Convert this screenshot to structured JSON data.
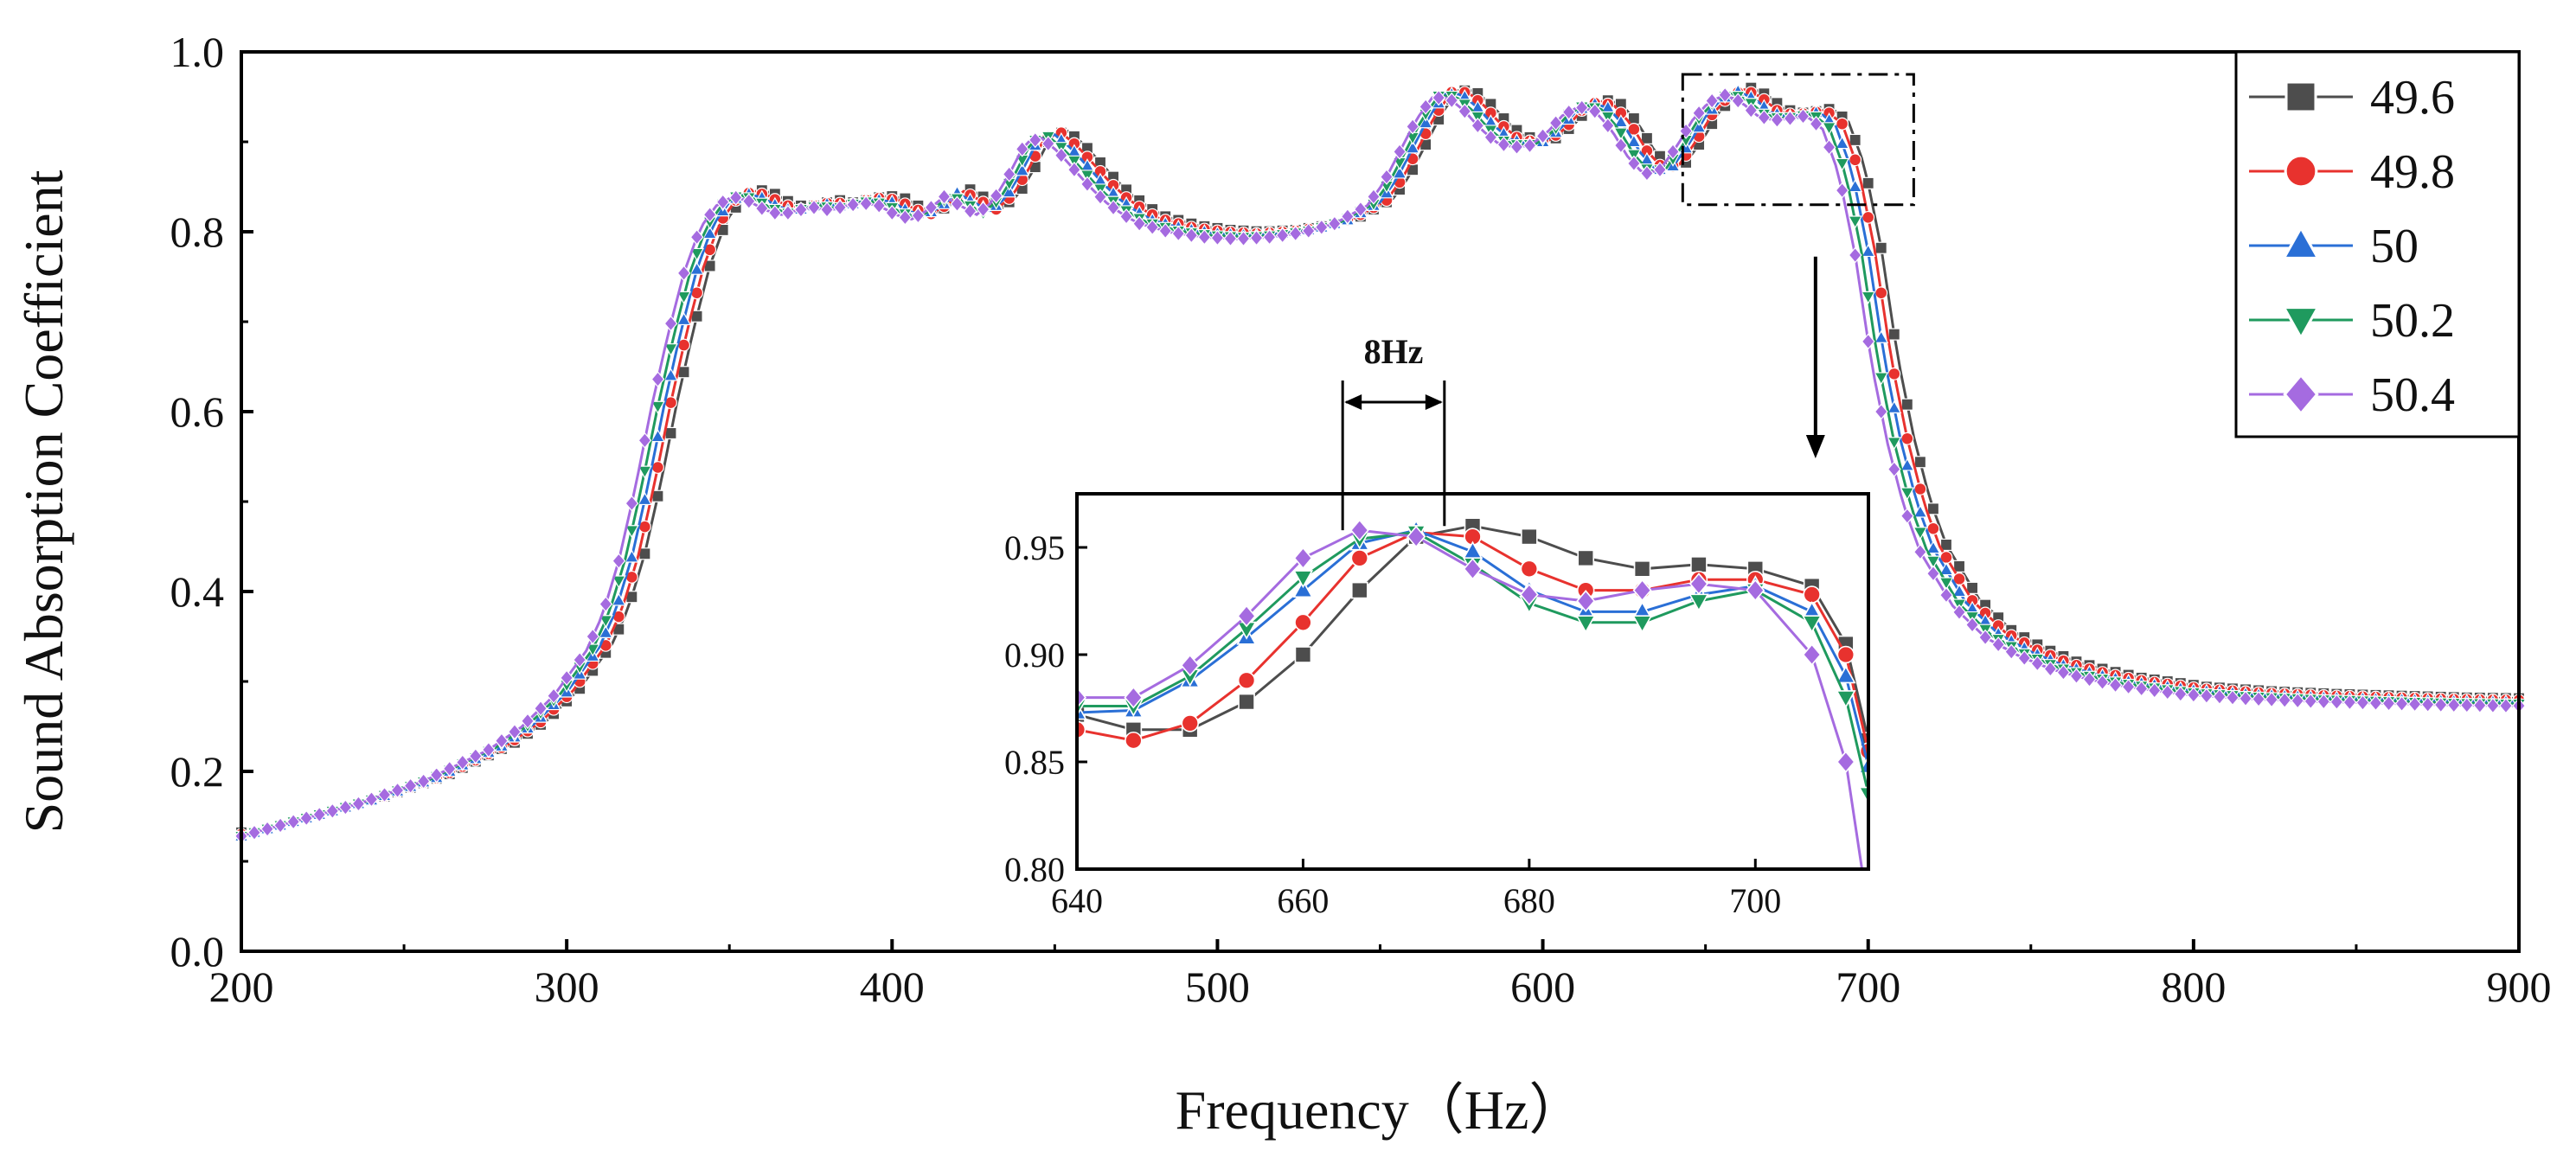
{
  "colors": {
    "s49_6": "#4d4d4d",
    "s49_8": "#e8322e",
    "s50": "#2a6fd6",
    "s50_2": "#1f9a5e",
    "s50_4": "#a56be0",
    "axis": "#000000",
    "marker_outline": "#ffffff"
  },
  "chart_data": [
    {
      "id": "main",
      "type": "line",
      "title": "",
      "xlabel": "Frequency（Hz）",
      "ylabel": "Sound Absorption Coefficient",
      "xlim": [
        200,
        900
      ],
      "ylim": [
        0.0,
        1.0
      ],
      "xticks": [
        "200",
        "300",
        "400",
        "500",
        "600",
        "700",
        "800",
        "900"
      ],
      "yticks": [
        "0.0",
        "0.2",
        "0.4",
        "0.6",
        "0.8",
        "1.0"
      ],
      "grid": false,
      "legend": "top-right",
      "base_curve": {
        "x": [
          200,
          220,
          240,
          260,
          280,
          290,
          300,
          310,
          315,
          320,
          325,
          330,
          335,
          340,
          345,
          350,
          355,
          360,
          365,
          370,
          375,
          380,
          385,
          390,
          395,
          400,
          405,
          410,
          415,
          420,
          425,
          430,
          435,
          440,
          445,
          450,
          455,
          460,
          465,
          470,
          475,
          480,
          490,
          500,
          510,
          520,
          530,
          540,
          550,
          555,
          560,
          565,
          570,
          575,
          580,
          585,
          590,
          595,
          600,
          605,
          610,
          615,
          620,
          625,
          630,
          635,
          640,
          645,
          650,
          655,
          660,
          665,
          670,
          675,
          680,
          685,
          690,
          695,
          700,
          705,
          710,
          715,
          720,
          730,
          740,
          750,
          760,
          770,
          780,
          800,
          820,
          840,
          860,
          880,
          900
        ],
        "y": [
          0.13,
          0.15,
          0.17,
          0.195,
          0.23,
          0.255,
          0.29,
          0.34,
          0.38,
          0.44,
          0.52,
          0.61,
          0.69,
          0.76,
          0.81,
          0.835,
          0.845,
          0.84,
          0.83,
          0.825,
          0.83,
          0.833,
          0.83,
          0.835,
          0.838,
          0.835,
          0.825,
          0.82,
          0.83,
          0.845,
          0.835,
          0.825,
          0.84,
          0.87,
          0.905,
          0.91,
          0.895,
          0.875,
          0.855,
          0.838,
          0.825,
          0.815,
          0.805,
          0.8,
          0.798,
          0.8,
          0.805,
          0.815,
          0.835,
          0.86,
          0.895,
          0.93,
          0.955,
          0.955,
          0.94,
          0.92,
          0.905,
          0.9,
          0.902,
          0.915,
          0.935,
          0.945,
          0.94,
          0.92,
          0.89,
          0.87,
          0.875,
          0.9,
          0.93,
          0.95,
          0.958,
          0.95,
          0.935,
          0.93,
          0.932,
          0.935,
          0.92,
          0.87,
          0.78,
          0.66,
          0.57,
          0.5,
          0.45,
          0.39,
          0.355,
          0.335,
          0.32,
          0.31,
          0.302,
          0.292,
          0.287,
          0.284,
          0.282,
          0.28,
          0.279
        ]
      },
      "series": [
        {
          "name": "49.6",
          "color_key": "s49_6",
          "marker": "square",
          "x_shift": 4,
          "y_offset": 0.002
        },
        {
          "name": "49.8",
          "color_key": "s49_8",
          "marker": "circle",
          "x_shift": 2,
          "y_offset": 0.0
        },
        {
          "name": "50",
          "color_key": "s50",
          "marker": "triangle-up",
          "x_shift": 0,
          "y_offset": -0.002
        },
        {
          "name": "50.2",
          "color_key": "s50_2",
          "marker": "triangle-down",
          "x_shift": -2,
          "y_offset": -0.004
        },
        {
          "name": "50.4",
          "color_key": "s50_4",
          "marker": "diamond",
          "x_shift": -4,
          "y_offset": -0.006
        }
      ],
      "annotation": {
        "zoom_box_x": [
          643,
          714
        ],
        "zoom_box_y": [
          0.83,
          0.975
        ]
      }
    },
    {
      "id": "inset",
      "type": "line",
      "title": "",
      "xlim": [
        640,
        710
      ],
      "ylim": [
        0.8,
        0.975
      ],
      "xticks": [
        "640",
        "660",
        "680",
        "700"
      ],
      "yticks": [
        "0.80",
        "0.85",
        "0.90",
        "0.95"
      ],
      "grid": false,
      "annotation_label": "8Hz",
      "annotation_x": [
        663.5,
        672.5
      ],
      "series": [
        {
          "name": "49.6",
          "color_key": "s49_6",
          "marker": "square",
          "x": [
            640,
            645,
            650,
            655,
            660,
            665,
            670,
            675,
            680,
            685,
            690,
            695,
            700,
            705,
            708,
            710
          ],
          "y": [
            0.872,
            0.865,
            0.865,
            0.878,
            0.9,
            0.93,
            0.955,
            0.96,
            0.955,
            0.945,
            0.94,
            0.942,
            0.94,
            0.932,
            0.905,
            0.86
          ]
        },
        {
          "name": "49.8",
          "color_key": "s49_8",
          "marker": "circle",
          "x": [
            640,
            645,
            650,
            655,
            660,
            665,
            670,
            675,
            680,
            685,
            690,
            695,
            700,
            705,
            708,
            710
          ],
          "y": [
            0.865,
            0.86,
            0.868,
            0.888,
            0.915,
            0.945,
            0.957,
            0.955,
            0.94,
            0.93,
            0.93,
            0.935,
            0.935,
            0.928,
            0.9,
            0.855
          ]
        },
        {
          "name": "50",
          "color_key": "s50",
          "marker": "triangle-up",
          "x": [
            640,
            645,
            650,
            655,
            660,
            665,
            670,
            675,
            680,
            685,
            690,
            695,
            700,
            705,
            708,
            710
          ],
          "y": [
            0.873,
            0.874,
            0.888,
            0.908,
            0.93,
            0.952,
            0.958,
            0.948,
            0.93,
            0.92,
            0.92,
            0.928,
            0.932,
            0.92,
            0.89,
            0.848
          ]
        },
        {
          "name": "50.2",
          "color_key": "s50_2",
          "marker": "triangle-down",
          "x": [
            640,
            645,
            650,
            655,
            660,
            665,
            670,
            675,
            680,
            685,
            690,
            695,
            700,
            705,
            708,
            710
          ],
          "y": [
            0.876,
            0.876,
            0.89,
            0.912,
            0.936,
            0.954,
            0.957,
            0.942,
            0.924,
            0.915,
            0.915,
            0.925,
            0.93,
            0.915,
            0.88,
            0.835
          ]
        },
        {
          "name": "50.4",
          "color_key": "s50_4",
          "marker": "diamond",
          "x": [
            640,
            645,
            650,
            655,
            660,
            665,
            670,
            675,
            680,
            685,
            690,
            695,
            700,
            705,
            708,
            710
          ],
          "y": [
            0.88,
            0.88,
            0.895,
            0.918,
            0.945,
            0.958,
            0.955,
            0.94,
            0.928,
            0.925,
            0.93,
            0.933,
            0.93,
            0.9,
            0.85,
            0.78
          ]
        }
      ]
    }
  ]
}
